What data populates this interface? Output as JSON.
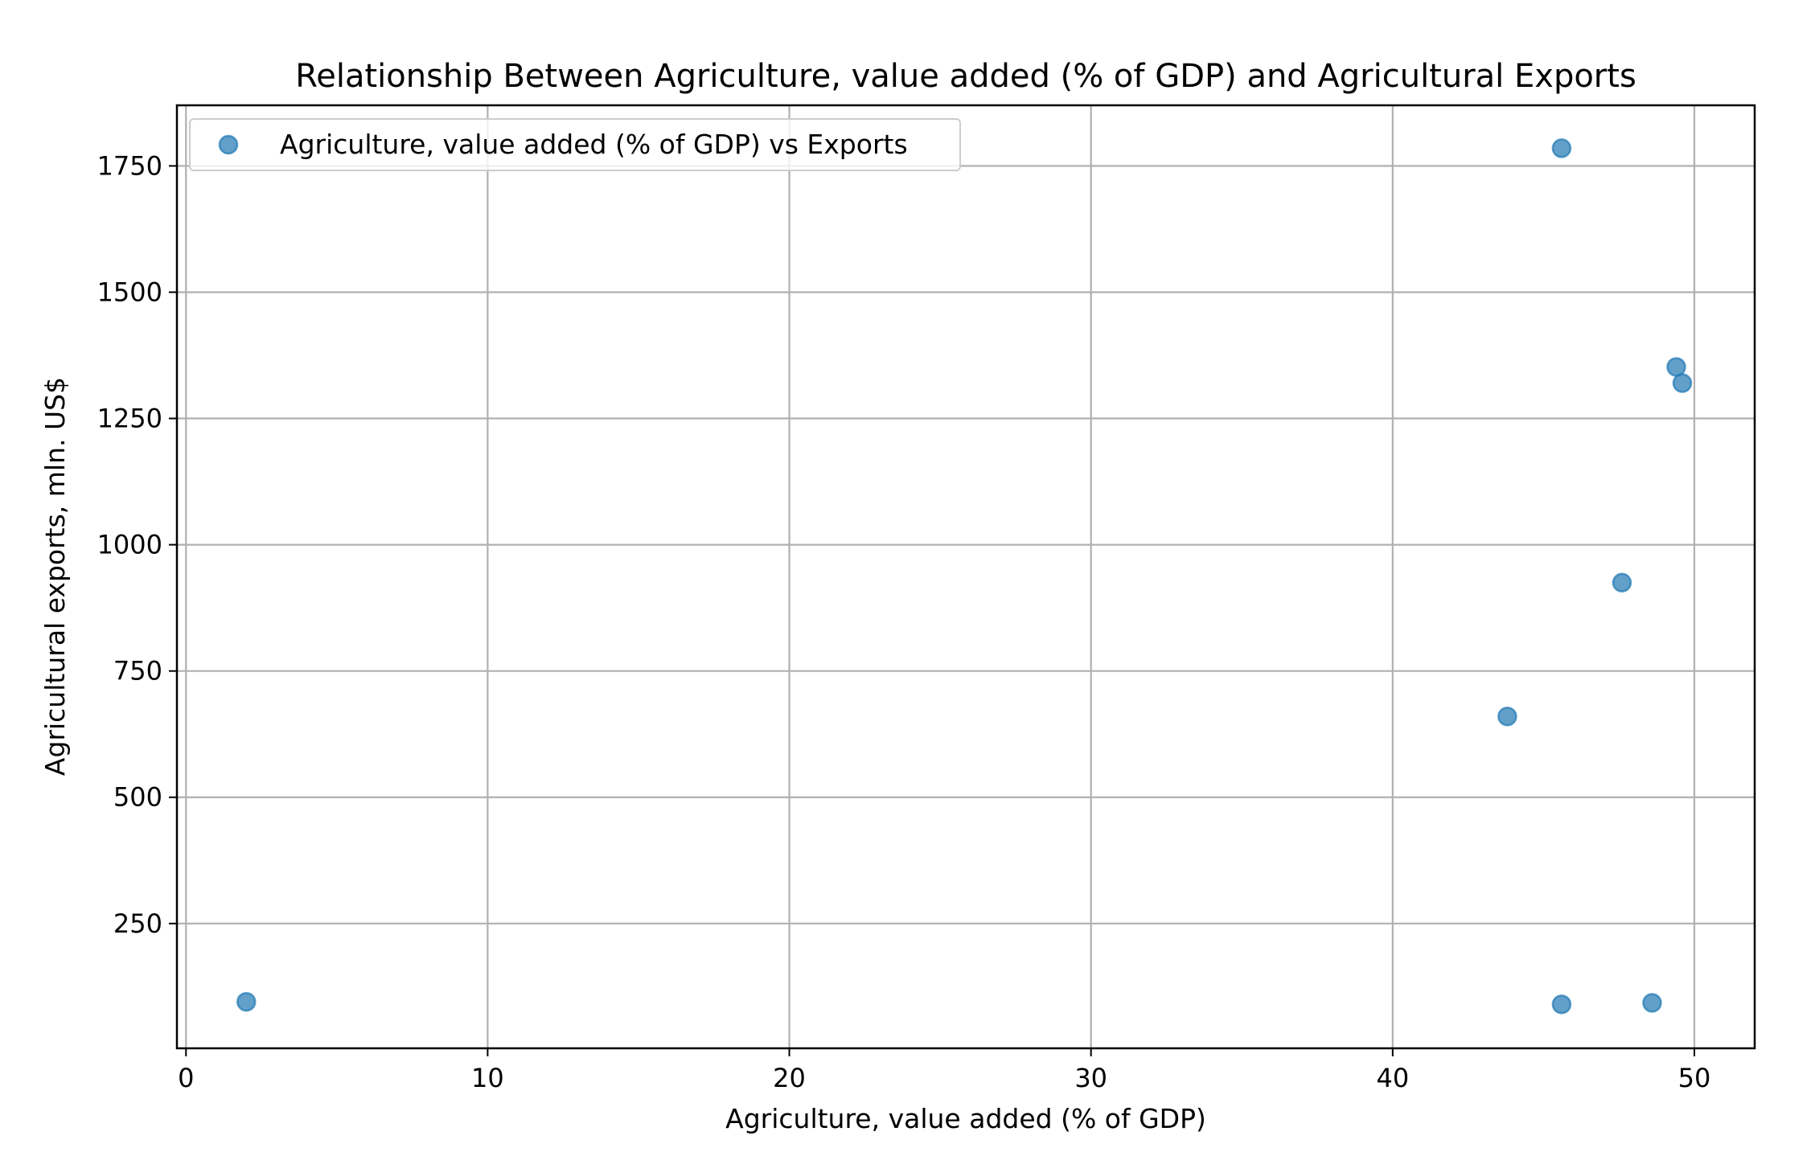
{
  "chart_data": {
    "type": "scatter",
    "title": "Relationship Between Agriculture, value added (% of GDP) and Agricultural Exports",
    "xlabel": "Agriculture, value added (% of GDP)",
    "ylabel": "Agricultural exports, mln. US$",
    "xlim": [
      -0.3,
      52
    ],
    "ylim": [
      3,
      1870
    ],
    "xticks": [
      0,
      10,
      20,
      30,
      40,
      50
    ],
    "yticks": [
      250,
      500,
      750,
      1000,
      1250,
      1500,
      1750
    ],
    "grid": true,
    "legend_position": "top-left",
    "colors": {
      "point_fill": "#1f77b4",
      "point_opacity": 0.7
    },
    "series": [
      {
        "name": "Agriculture, value added (% of GDP) vs Exports",
        "points": [
          {
            "x": 2.0,
            "y": 95
          },
          {
            "x": 43.8,
            "y": 660
          },
          {
            "x": 45.6,
            "y": 1785
          },
          {
            "x": 45.6,
            "y": 90
          },
          {
            "x": 47.6,
            "y": 925
          },
          {
            "x": 48.6,
            "y": 93
          },
          {
            "x": 49.4,
            "y": 1352
          },
          {
            "x": 49.6,
            "y": 1320
          }
        ]
      }
    ]
  }
}
